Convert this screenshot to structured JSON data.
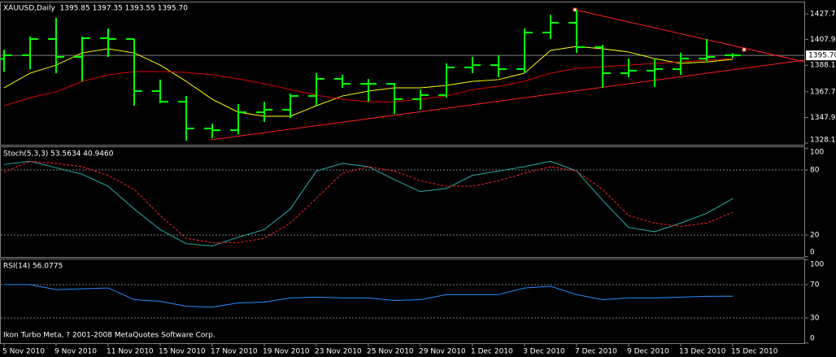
{
  "chart_data": [
    {
      "type": "ohlc",
      "title": "XAUUSD,Daily  1395.85 1397.35 1393.55 1395.70",
      "categories": [
        "5 Nov 2010",
        null,
        "9 Nov 2010",
        null,
        "11 Nov 2010",
        null,
        "15 Nov 2010",
        null,
        "17 Nov 2010",
        null,
        "19 Nov 2010",
        null,
        "23 Nov 2010",
        null,
        "25 Nov 2010",
        null,
        "29 Nov 2010",
        null,
        "1 Dec 2010",
        null,
        "3 Dec 2010",
        null,
        "7 Dec 2010",
        null,
        "9 Dec 2010",
        null,
        "13 Dec 2010",
        null,
        "15 Dec 2010"
      ],
      "color": "#00ff00",
      "open": [
        1393,
        1395.8,
        1408.3,
        1394.5,
        1408.9,
        1408.3,
        1368.2,
        1360,
        1339.4,
        1338.1,
        1351.9,
        1353.8,
        1364.4,
        1377.6,
        1373.8,
        1373.8,
        1362,
        1365.1,
        1386.4,
        1388.2,
        1385.1,
        1413.3,
        1420.8,
        1402,
        1382,
        1383.9,
        1385.1,
        1393.2,
        1395.85
      ],
      "high": [
        1400,
        1410.2,
        1424.6,
        1410.2,
        1416.4,
        1408.5,
        1377,
        1364.4,
        1343.1,
        1358.2,
        1360,
        1366.3,
        1382,
        1380.7,
        1377.6,
        1374.5,
        1369.4,
        1389.5,
        1394.5,
        1395.8,
        1416.4,
        1427.1,
        1430.8,
        1403.9,
        1393.2,
        1392.6,
        1397.6,
        1408.3,
        1397.35
      ],
      "low": [
        1383,
        1385.1,
        1382,
        1375.7,
        1394.5,
        1356.9,
        1358.8,
        1330,
        1331.9,
        1335,
        1344.4,
        1347.5,
        1356.9,
        1370.7,
        1360,
        1350.7,
        1353.8,
        1363.2,
        1382,
        1378.8,
        1382,
        1408.3,
        1397.6,
        1370.7,
        1378.8,
        1371.3,
        1380.7,
        1391.4,
        1393.55
      ],
      "close": [
        1395.8,
        1408.3,
        1394.5,
        1408.9,
        1408.3,
        1368.2,
        1360,
        1339.4,
        1338.1,
        1351.9,
        1353.8,
        1364.4,
        1377.6,
        1373.8,
        1373.8,
        1362,
        1365.1,
        1386.4,
        1388.2,
        1385.1,
        1413.3,
        1420.8,
        1402,
        1382,
        1383.9,
        1385.1,
        1393.2,
        1394.5,
        1395.7
      ],
      "series": [
        {
          "color": "#ffff00",
          "values": [
            1370.7,
            1382,
            1388.2,
            1397.6,
            1400.8,
            1397.6,
            1388.2,
            1375.7,
            1361.9,
            1351.9,
            1348.8,
            1348.8,
            1356.9,
            1364.4,
            1368.2,
            1370.7,
            1370.7,
            1372.6,
            1375.7,
            1377,
            1382,
            1399.5,
            1402.6,
            1400.8,
            1398.3,
            1393.2,
            1389.5,
            1390.7,
            1392.6
          ]
        },
        {
          "color": "#dd0000",
          "values": [
            1356.9,
            1363.2,
            1367.6,
            1375.7,
            1380.7,
            1383.2,
            1383.2,
            1382.6,
            1380.7,
            1377.6,
            1373.8,
            1369.4,
            1365.1,
            1361.9,
            1360,
            1360,
            1361.9,
            1364.4,
            1369.4,
            1371.9,
            1375.7,
            1382,
            1385.7,
            1387,
            1388.2,
            1389.5,
            1390.7,
            1392,
            1393.2
          ]
        }
      ],
      "ylim": [
        1326.85,
        1436.47
      ],
      "yticks": [
        {
          "value": 1427.7,
          "label": "1427.70"
        },
        {
          "value": 1407.9,
          "label": "1407.90"
        },
        {
          "value": 1388.1,
          "label": "1388.10"
        },
        {
          "value": 1367.7,
          "label": "1367.70"
        },
        {
          "value": 1347.9,
          "label": "1347.90"
        },
        {
          "value": 1328.1,
          "label": "1328.10"
        }
      ],
      "current_price": {
        "value": 1395.7,
        "label": "1395.70"
      }
    },
    {
      "type": "line",
      "title": "Stoch(5,3,3) 53.5634 40.9460",
      "series": [
        {
          "color": "#20b2aa",
          "values": [
            85,
            88,
            82,
            76,
            65,
            44,
            25,
            12,
            10,
            18,
            25,
            44,
            79,
            86,
            83,
            71,
            60,
            63,
            75,
            79,
            83,
            88,
            79,
            52,
            27,
            23,
            31,
            40,
            53.5634
          ]
        },
        {
          "color": "#ff2020",
          "dashed": true,
          "values": [
            78,
            88,
            86,
            83,
            75,
            62,
            38,
            17,
            13,
            13,
            17,
            31,
            54,
            77,
            83,
            79,
            70,
            65,
            65,
            70,
            77,
            83,
            79,
            62,
            38,
            31,
            28,
            31,
            40.946
          ]
        }
      ],
      "ylim": [
        0,
        100
      ],
      "yticks": [
        100,
        80,
        20,
        0
      ],
      "levels": [
        80,
        20
      ]
    },
    {
      "type": "line",
      "title": "RSI(14) 56.0775",
      "series": [
        {
          "color": "#1e90ff",
          "values": [
            70,
            70,
            64,
            65,
            66,
            52,
            50,
            44,
            43,
            48,
            49,
            54,
            55,
            54,
            54,
            51,
            52,
            58,
            58,
            58,
            66,
            68,
            58,
            52,
            54,
            54,
            55,
            56,
            56.0775
          ]
        }
      ],
      "ylim": [
        0,
        100
      ],
      "yticks": [
        100,
        70,
        30,
        0
      ],
      "levels": [
        70,
        30
      ],
      "footer": "Ikon Turbo Meta, ? 2001-2008 MetaQuotes Software Corp."
    }
  ]
}
